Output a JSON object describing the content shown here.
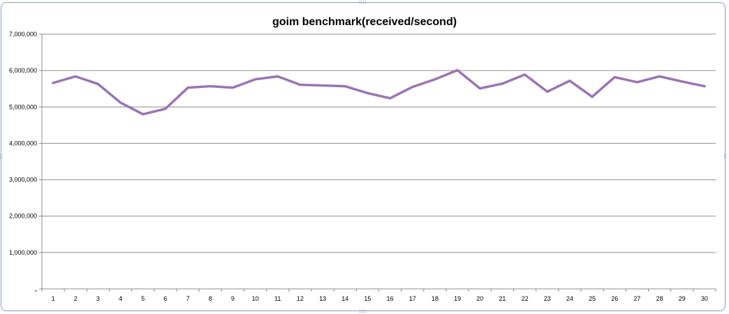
{
  "chart_data": {
    "type": "line",
    "title": "goim benchmark(received/second)",
    "xlabel": "",
    "ylabel": "",
    "categories": [
      "1",
      "2",
      "3",
      "4",
      "5",
      "6",
      "7",
      "8",
      "9",
      "10",
      "11",
      "12",
      "13",
      "14",
      "15",
      "16",
      "17",
      "18",
      "19",
      "20",
      "21",
      "22",
      "23",
      "24",
      "25",
      "26",
      "27",
      "28",
      "29",
      "30"
    ],
    "series": [
      {
        "values": [
          5660000,
          5840000,
          5630000,
          5120000,
          4800000,
          4950000,
          5530000,
          5570000,
          5530000,
          5760000,
          5840000,
          5610000,
          5590000,
          5570000,
          5380000,
          5240000,
          5550000,
          5760000,
          6010000,
          5510000,
          5640000,
          5890000,
          5420000,
          5720000,
          5280000,
          5820000,
          5680000,
          5840000,
          5700000,
          5570000
        ]
      }
    ],
    "ylim": [
      0,
      7000000
    ],
    "yticks": [
      "„",
      "1,000,000",
      "2,000,000",
      "3,000,000",
      "4,000,000",
      "5,000,000",
      "6,000,000",
      "7,000,000"
    ],
    "grid": true,
    "legend": "none",
    "line_color": "#9b74b3",
    "grid_color": "#8c8c8c",
    "axis_color": "#8c8c8c"
  }
}
